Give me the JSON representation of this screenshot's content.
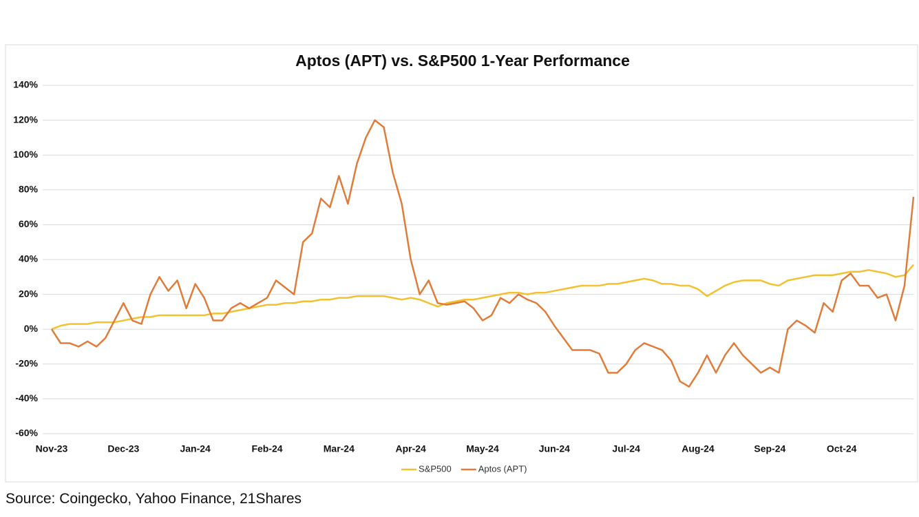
{
  "chart_data": {
    "type": "line",
    "title": "Aptos (APT) vs. S&P500  1-Year Performance",
    "categories": [
      "Nov-23",
      null,
      null,
      null,
      null,
      null,
      null,
      null,
      "Dec-23",
      null,
      null,
      null,
      null,
      null,
      null,
      null,
      "Jan-24",
      null,
      null,
      null,
      null,
      null,
      null,
      null,
      "Feb-24",
      null,
      null,
      null,
      null,
      null,
      null,
      null,
      "Mar-24",
      null,
      null,
      null,
      null,
      null,
      null,
      null,
      "Apr-24",
      null,
      null,
      null,
      null,
      null,
      null,
      null,
      "May-24",
      null,
      null,
      null,
      null,
      null,
      null,
      null,
      "Jun-24",
      null,
      null,
      null,
      null,
      null,
      null,
      null,
      "Jul-24",
      null,
      null,
      null,
      null,
      null,
      null,
      null,
      "Aug-24",
      null,
      null,
      null,
      null,
      null,
      null,
      null,
      "Sep-24",
      null,
      null,
      null,
      null,
      null,
      null,
      null,
      "Oct-24",
      null,
      null,
      null,
      null,
      null,
      null,
      null,
      null
    ],
    "series": [
      {
        "name": "S&P500",
        "color": "#f2c12e",
        "values": [
          0,
          2,
          3,
          3,
          3,
          4,
          4,
          4,
          5,
          6,
          7,
          7,
          8,
          8,
          8,
          8,
          8,
          8,
          9,
          9,
          10,
          11,
          12,
          13,
          14,
          14,
          15,
          15,
          16,
          16,
          17,
          17,
          18,
          18,
          19,
          19,
          19,
          19,
          18,
          17,
          18,
          17,
          15,
          13,
          15,
          16,
          17,
          17,
          18,
          19,
          20,
          21,
          21,
          20,
          21,
          21,
          22,
          23,
          24,
          25,
          25,
          25,
          26,
          26,
          27,
          28,
          29,
          28,
          26,
          26,
          25,
          25,
          23,
          19,
          22,
          25,
          27,
          28,
          28,
          28,
          26,
          25,
          28,
          29,
          30,
          31,
          31,
          31,
          32,
          33,
          33,
          34,
          33,
          32,
          30,
          31,
          37
        ]
      },
      {
        "name": "Aptos (APT)",
        "color": "#e07b39",
        "values": [
          0,
          -8,
          -8,
          -10,
          -7,
          -10,
          -5,
          5,
          15,
          5,
          3,
          20,
          30,
          22,
          28,
          12,
          26,
          18,
          5,
          5,
          12,
          15,
          12,
          15,
          18,
          28,
          24,
          20,
          50,
          55,
          75,
          70,
          88,
          72,
          95,
          110,
          120,
          116,
          90,
          72,
          40,
          20,
          28,
          15,
          14,
          15,
          16,
          12,
          5,
          8,
          18,
          15,
          20,
          17,
          15,
          10,
          2,
          -5,
          -12,
          -12,
          -12,
          -14,
          -25,
          -25,
          -20,
          -12,
          -8,
          -10,
          -12,
          -18,
          -30,
          -33,
          -25,
          -15,
          -25,
          -15,
          -8,
          -15,
          -20,
          -25,
          -22,
          -25,
          0,
          5,
          2,
          -2,
          15,
          10,
          28,
          32,
          25,
          25,
          18,
          20,
          5,
          25,
          76
        ]
      }
    ],
    "ylim": [
      -60,
      140
    ],
    "yticks": [
      {
        "value": -60,
        "label": "-60%"
      },
      {
        "value": -40,
        "label": "-40%"
      },
      {
        "value": -20,
        "label": "-20%"
      },
      {
        "value": 0,
        "label": "0%"
      },
      {
        "value": 20,
        "label": "20%"
      },
      {
        "value": 40,
        "label": "40%"
      },
      {
        "value": 60,
        "label": "60%"
      },
      {
        "value": 80,
        "label": "80%"
      },
      {
        "value": 100,
        "label": "100%"
      },
      {
        "value": 120,
        "label": "120%"
      },
      {
        "value": 140,
        "label": "140%"
      }
    ],
    "grid": true,
    "legend": "bottom"
  },
  "source": "Source: Coingecko, Yahoo Finance, 21Shares"
}
